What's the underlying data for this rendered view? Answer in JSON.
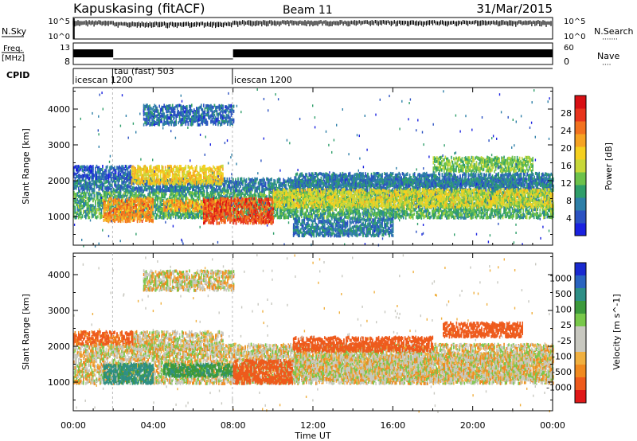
{
  "header": {
    "station": "Kapuskasing (fitACF)",
    "beam": "Beam 11",
    "date": "31/Mar/2015"
  },
  "top_panels": {
    "nsky": {
      "label": "N.Sky",
      "tick_top": "10^5",
      "tick_bottom": "10^0"
    },
    "nsearch": {
      "label": "N.Search",
      "dots": "·······",
      "tick_top": "10^5",
      "tick_bottom": "10^0"
    },
    "freq": {
      "label_line1": "Freq.",
      "label_line2": "[MHz]",
      "tick_top": "13",
      "tick_bottom": "8"
    },
    "nave": {
      "label": "Nave",
      "dots": "····",
      "tick_top": "60",
      "tick_bottom": "0"
    },
    "cpid": {
      "label": "CPID",
      "segments": [
        {
          "start_h": 0.0,
          "name": "icescan 1200"
        },
        {
          "start_h": 1.97,
          "name": "tau (fast) 503"
        },
        {
          "start_h": 7.97,
          "name": "icescan 1200"
        }
      ]
    }
  },
  "chart_data": [
    {
      "type": "heatmap",
      "panel": "power",
      "ylabel": "Slant Range [km]",
      "ylim": [
        200,
        4600
      ],
      "yticks": [
        1000,
        2000,
        3000,
        4000
      ],
      "xlim_hours": [
        0,
        24
      ],
      "colorbar": {
        "label": "Power [dB]",
        "ticks": [
          "4",
          "8",
          "12",
          "16",
          "20",
          "24",
          "28"
        ],
        "colors": [
          "#1a22e0",
          "#2b52c2",
          "#2e7fa8",
          "#2f9e6a",
          "#6dc24b",
          "#c8d83a",
          "#f5d020",
          "#f6a323",
          "#f2721f",
          "#e8341c",
          "#d80f14"
        ]
      },
      "scatter_bands": [
        {
          "t0": 0.0,
          "t1": 24.0,
          "r0": 1000,
          "r1": 1750,
          "power": 10
        },
        {
          "t0": 0.0,
          "t1": 24.0,
          "r0": 1750,
          "r1": 2100,
          "power": 6
        },
        {
          "t0": 0.0,
          "t1": 3.0,
          "r0": 2100,
          "r1": 2450,
          "power": 4
        },
        {
          "t0": 2.9,
          "t1": 7.5,
          "r0": 1950,
          "r1": 2450,
          "power": 18
        },
        {
          "t0": 1.5,
          "t1": 4.0,
          "r0": 900,
          "r1": 1550,
          "power": 22
        },
        {
          "t0": 4.5,
          "t1": 8.0,
          "r0": 1200,
          "r1": 1500,
          "power": 20
        },
        {
          "t0": 6.5,
          "t1": 10.0,
          "r0": 850,
          "r1": 1550,
          "power": 26
        },
        {
          "t0": 10.0,
          "t1": 24.0,
          "r0": 1300,
          "r1": 1800,
          "power": 16
        },
        {
          "t0": 11.0,
          "t1": 24.0,
          "r0": 1900,
          "r1": 2250,
          "power": 6
        },
        {
          "t0": 3.5,
          "t1": 8.0,
          "r0": 3600,
          "r1": 4150,
          "power": 5
        },
        {
          "t0": 18.0,
          "t1": 23.0,
          "r0": 2300,
          "r1": 2700,
          "power": 12
        },
        {
          "t0": 11.0,
          "t1": 16.0,
          "r0": 500,
          "r1": 1000,
          "power": 6
        }
      ]
    },
    {
      "type": "heatmap",
      "panel": "velocity",
      "ylabel": "Slant Range [km]",
      "ylim": [
        200,
        4600
      ],
      "yticks": [
        1000,
        2000,
        3000,
        4000
      ],
      "xlim_hours": [
        0,
        24
      ],
      "xticks": [
        "00:00",
        "04:00",
        "08:00",
        "12:00",
        "16:00",
        "20:00",
        "00:00"
      ],
      "xlabel": "Time UT",
      "colorbar": {
        "label": "Velocity [m s^-1]",
        "ticks": [
          "1000",
          "500",
          "100",
          "25",
          "-25",
          "-100",
          "-500",
          "-1000"
        ],
        "colors": [
          "#1a2ad0",
          "#2a64c0",
          "#2e8f86",
          "#3c9a3c",
          "#78c84a",
          "#c8c8c0",
          "#c8c8c0",
          "#f0b040",
          "#f08a20",
          "#ee5a1c",
          "#e01818"
        ]
      },
      "scatter_bands": [
        {
          "t0": 0.0,
          "t1": 24.0,
          "r0": 1000,
          "r1": 1750,
          "velocity": 0
        },
        {
          "t0": 0.0,
          "t1": 24.0,
          "r0": 1750,
          "r1": 2100,
          "velocity": 0
        },
        {
          "t0": 2.9,
          "t1": 7.5,
          "r0": 1950,
          "r1": 2450,
          "velocity": 0
        },
        {
          "t0": 1.5,
          "t1": 4.0,
          "r0": 1000,
          "r1": 1550,
          "velocity": 300
        },
        {
          "t0": 4.5,
          "t1": 8.0,
          "r0": 1200,
          "r1": 1550,
          "velocity": 200
        },
        {
          "t0": 8.0,
          "t1": 11.0,
          "r0": 1000,
          "r1": 1650,
          "velocity": -300
        },
        {
          "t0": 11.0,
          "t1": 24.0,
          "r0": 1100,
          "r1": 1800,
          "velocity": 0
        },
        {
          "t0": 11.0,
          "t1": 18.0,
          "r0": 1900,
          "r1": 2300,
          "velocity": -200
        },
        {
          "t0": 3.5,
          "t1": 8.0,
          "r0": 3600,
          "r1": 4150,
          "velocity": 0
        },
        {
          "t0": 18.5,
          "t1": 22.5,
          "r0": 2300,
          "r1": 2700,
          "velocity": -250
        },
        {
          "t0": 0.0,
          "t1": 3.0,
          "r0": 2100,
          "r1": 2450,
          "velocity": -150
        }
      ]
    }
  ]
}
